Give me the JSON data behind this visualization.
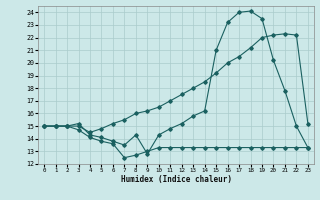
{
  "xlabel": "Humidex (Indice chaleur)",
  "bg_color": "#cce8e8",
  "line_color": "#1a6060",
  "grid_color": "#aacccc",
  "xlim": [
    -0.5,
    23.5
  ],
  "ylim": [
    12,
    24.5
  ],
  "xticks": [
    0,
    1,
    2,
    3,
    4,
    5,
    6,
    7,
    8,
    9,
    10,
    11,
    12,
    13,
    14,
    15,
    16,
    17,
    18,
    19,
    20,
    21,
    22,
    23
  ],
  "yticks": [
    12,
    13,
    14,
    15,
    16,
    17,
    18,
    19,
    20,
    21,
    22,
    23,
    24
  ],
  "line1_x": [
    0,
    1,
    2,
    3,
    4,
    5,
    6,
    7,
    8,
    9,
    10,
    11,
    12,
    13,
    14,
    15,
    16,
    17,
    18,
    19,
    20,
    21,
    22,
    23
  ],
  "line1_y": [
    15,
    15,
    15,
    15,
    14.5,
    14.8,
    15.2,
    15.5,
    16.0,
    16.2,
    16.5,
    17.0,
    17.5,
    18.0,
    18.5,
    19.2,
    20.0,
    20.5,
    21.2,
    22.0,
    22.2,
    22.3,
    22.2,
    15.2
  ],
  "line2_x": [
    0,
    1,
    2,
    3,
    4,
    5,
    6,
    7,
    8,
    9,
    10,
    11,
    12,
    13,
    14,
    15,
    16,
    17,
    18,
    19,
    20,
    21,
    22,
    23
  ],
  "line2_y": [
    15,
    15,
    15,
    15.2,
    14.3,
    14.1,
    13.8,
    13.5,
    14.3,
    12.8,
    14.3,
    14.8,
    15.2,
    15.8,
    16.2,
    21.0,
    23.2,
    24.0,
    24.1,
    23.5,
    20.2,
    17.8,
    15.0,
    13.3
  ],
  "line3_x": [
    0,
    1,
    2,
    3,
    4,
    5,
    6,
    7,
    8,
    9,
    10,
    11,
    12,
    13,
    14,
    15,
    16,
    17,
    18,
    19,
    20,
    21,
    22,
    23
  ],
  "line3_y": [
    15,
    15,
    15,
    14.7,
    14.1,
    13.8,
    13.6,
    12.5,
    12.7,
    13.0,
    13.3,
    13.3,
    13.3,
    13.3,
    13.3,
    13.3,
    13.3,
    13.3,
    13.3,
    13.3,
    13.3,
    13.3,
    13.3,
    13.3
  ]
}
